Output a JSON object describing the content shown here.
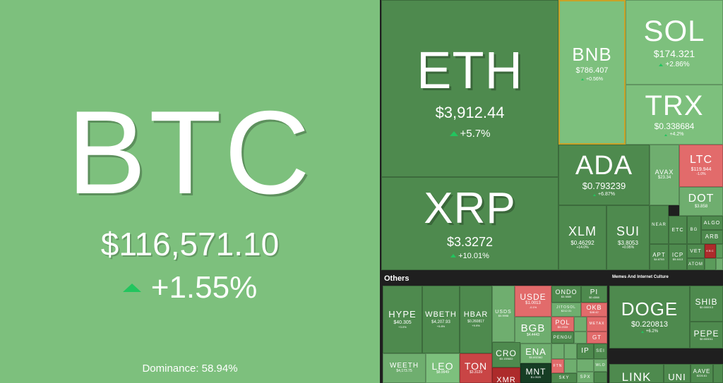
{
  "btc": {
    "symbol": "BTC",
    "price": "$116,571.10",
    "change": "+1.55%",
    "dominance": "Dominance: 58.94%"
  },
  "tiles": {
    "eth": {
      "symbol": "ETH",
      "price": "$3,912.44",
      "change": "+5.7%"
    },
    "xrp": {
      "symbol": "XRP",
      "price": "$3.3272",
      "change": "+10.01%"
    },
    "bnb": {
      "symbol": "BNB",
      "price": "$786.407",
      "change": "+0.56%"
    },
    "sol": {
      "symbol": "SOL",
      "price": "$174.321",
      "change": "+2.86%"
    },
    "trx": {
      "symbol": "TRX",
      "price": "$0.338684",
      "change": "+4.2%"
    },
    "ada": {
      "symbol": "ADA",
      "price": "$0.793239",
      "change": "+6.87%"
    },
    "avax": {
      "symbol": "AVAX",
      "price": "$23.34",
      "change": ""
    },
    "ltc": {
      "symbol": "LTC",
      "price": "$119.944",
      "change": "-1.0%"
    },
    "dot": {
      "symbol": "DOT",
      "price": "$3.858",
      "change": ""
    },
    "xlm": {
      "symbol": "XLM",
      "price": "$0.46292",
      "change": "+14.0%"
    },
    "sui": {
      "symbol": "SUI",
      "price": "$3.8053",
      "change": "+0.95%"
    },
    "near": {
      "symbol": "NEAR",
      "price": "",
      "change": ""
    },
    "etc": {
      "symbol": "ETC",
      "price": "",
      "change": ""
    },
    "bg": {
      "symbol": "BG",
      "price": "",
      "change": ""
    },
    "algo": {
      "symbol": "ALGO",
      "price": "",
      "change": ""
    },
    "arb": {
      "symbol": "ARB",
      "price": "",
      "change": ""
    },
    "apt": {
      "symbol": "APT",
      "price": "$4.8753",
      "change": ""
    },
    "icp": {
      "symbol": "ICP",
      "price": "$5.4413",
      "change": ""
    },
    "vet": {
      "symbol": "VET",
      "price": "",
      "change": ""
    },
    "kbc": {
      "symbol": "KBC",
      "price": "",
      "change": ""
    },
    "atom": {
      "symbol": "ATOM",
      "price": "",
      "change": ""
    },
    "hype": {
      "symbol": "HYPE",
      "price": "$40.305",
      "change": "+3.0%"
    },
    "wbeth": {
      "symbol": "WBETH",
      "price": "$4,207.93",
      "change": "+5.8%"
    },
    "hbar": {
      "symbol": "HBAR",
      "price": "$0.260817",
      "change": "+9.9%"
    },
    "usds": {
      "symbol": "USDS",
      "price": "$0.9998",
      "change": ""
    },
    "usde": {
      "symbol": "USDE",
      "price": "$1.0013",
      "change": "-0.1%"
    },
    "ondo": {
      "symbol": "ONDO",
      "price": "$0.9889",
      "change": ""
    },
    "pi": {
      "symbol": "PI",
      "price": "$0.4388",
      "change": ""
    },
    "stsol": {
      "symbol": "JITOSOL",
      "price": "$212.31",
      "change": ""
    },
    "okb": {
      "symbol": "OKB",
      "price": "$48.42",
      "change": ""
    },
    "bgb": {
      "symbol": "BGB",
      "price": "$4.4443",
      "change": ""
    },
    "pol": {
      "symbol": "POL",
      "price": "$0.2333",
      "change": ""
    },
    "metax": {
      "symbol": "METAX",
      "price": "",
      "change": ""
    },
    "pengu": {
      "symbol": "PENGU",
      "price": "",
      "change": ""
    },
    "gt": {
      "symbol": "GT",
      "price": "",
      "change": ""
    },
    "cro": {
      "symbol": "CRO",
      "price": "$0.159602",
      "change": ""
    },
    "ena": {
      "symbol": "ENA",
      "price": "$0.692362",
      "change": ""
    },
    "ip": {
      "symbol": "IP",
      "price": "",
      "change": ""
    },
    "sei": {
      "symbol": "SEI",
      "price": "",
      "change": ""
    },
    "weeth": {
      "symbol": "WEETH",
      "price": "$4,173.75",
      "change": ""
    },
    "leo": {
      "symbol": "LEO",
      "price": "$8.9949",
      "change": ""
    },
    "ton": {
      "symbol": "TON",
      "price": "$3.3129",
      "change": ""
    },
    "xmr": {
      "symbol": "XMR",
      "price": "",
      "change": ""
    },
    "mnt": {
      "symbol": "MNT",
      "price": "$1.0520",
      "change": ""
    },
    "fth": {
      "symbol": "FTN",
      "price": "",
      "change": ""
    },
    "sky": {
      "symbol": "SKY",
      "price": "",
      "change": ""
    },
    "spx": {
      "symbol": "SPX",
      "price": "",
      "change": ""
    },
    "wld": {
      "symbol": "WLD",
      "price": "",
      "change": ""
    },
    "doge": {
      "symbol": "DOGE",
      "price": "$0.220813",
      "change": "+6.2%"
    },
    "shib": {
      "symbol": "SHIB",
      "price": "$0.000013",
      "change": ""
    },
    "pepe": {
      "symbol": "PEPE",
      "price": "$0.000011",
      "change": ""
    },
    "link": {
      "symbol": "LINK",
      "price": "",
      "change": ""
    },
    "uni": {
      "symbol": "UNI",
      "price": "",
      "change": ""
    },
    "aave": {
      "symbol": "AAVE",
      "price": "$226.61",
      "change": ""
    }
  },
  "sectors": {
    "others": "Others",
    "memes": "Memes And Internet Culture"
  },
  "colors": {
    "up_arrow": "#22c55e"
  }
}
